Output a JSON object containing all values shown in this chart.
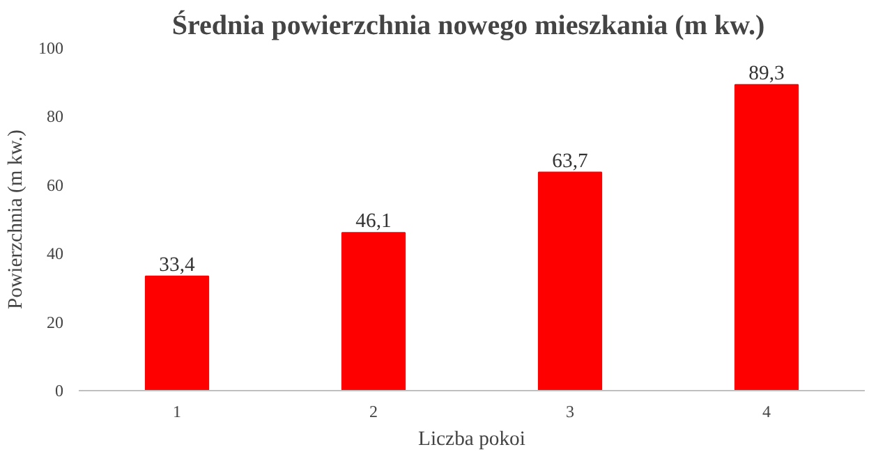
{
  "chart_data": {
    "type": "bar",
    "title": "Średnia powierzchnia nowego mieszkania  (m kw.)",
    "xlabel": "Liczba pokoi",
    "ylabel": "Powierzchnia (m kw.)",
    "categories": [
      "1",
      "2",
      "3",
      "4"
    ],
    "values": [
      33.4,
      46.1,
      63.7,
      89.3
    ],
    "value_labels": [
      "33,4",
      "46,1",
      "63,7",
      "89,3"
    ],
    "color": "#ff0000",
    "ylim": [
      0,
      100
    ],
    "yticks": [
      0,
      20,
      40,
      60,
      80,
      100
    ],
    "grid": false
  }
}
